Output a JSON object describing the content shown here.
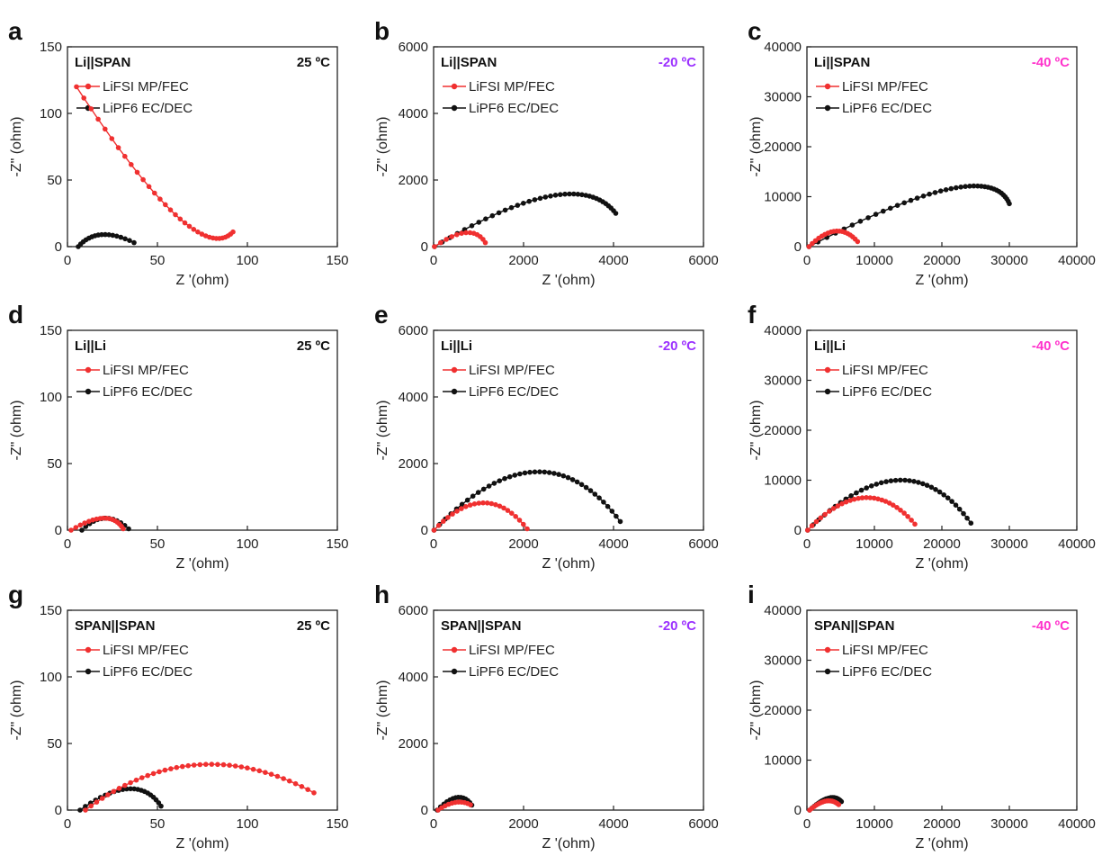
{
  "figure": {
    "legend_labels": [
      "LiFSI MP/FEC",
      "LiPF6 EC/DEC"
    ],
    "x_label": "Z '(ohm)",
    "y_label": "-Z\" (ohm)",
    "colors": {
      "series1": "#f03030",
      "series2": "#111111",
      "temp_20": "#9b30ff",
      "temp_40": "#ff33cc"
    }
  },
  "chart_data": [
    {
      "type": "scatter",
      "panel_letter": "a",
      "cell": "Li||SPAN",
      "temperature": "25 ºC",
      "temp_color": "#111111",
      "xlim": [
        0,
        150
      ],
      "ylim": [
        0,
        150
      ],
      "x_ticks": [
        "0",
        "50",
        "100",
        "150"
      ],
      "y_ticks": [
        "0",
        "50",
        "100",
        "150"
      ],
      "series": [
        {
          "name": "LiFSI MP/FEC",
          "color": "#f03030",
          "arc": [
            5,
            120,
            60,
            24,
            92,
            11,
            33
          ]
        },
        {
          "name": "LiPF6 EC/DEC",
          "color": "#111111",
          "arc": [
            6,
            0,
            19,
            9,
            37,
            3,
            17
          ]
        }
      ]
    },
    {
      "type": "scatter",
      "panel_letter": "b",
      "cell": "Li||SPAN",
      "temperature": "-20 ºC",
      "temp_color": "#9b30ff",
      "xlim": [
        0,
        6000
      ],
      "ylim": [
        0,
        6000
      ],
      "x_ticks": [
        "0",
        "2000",
        "4000",
        "6000"
      ],
      "y_ticks": [
        "0",
        "2000",
        "4000",
        "6000"
      ],
      "series": [
        {
          "name": "LiFSI MP/FEC",
          "color": "#f03030",
          "arc": [
            20,
            0,
            720,
            420,
            1150,
            120,
            13
          ]
        },
        {
          "name": "LiPF6 EC/DEC",
          "color": "#111111",
          "arc": [
            20,
            0,
            2600,
            1520,
            4050,
            1000,
            37
          ]
        }
      ]
    },
    {
      "type": "scatter",
      "panel_letter": "c",
      "cell": "Li||SPAN",
      "temperature": "-40 ºC",
      "temp_color": "#ff33cc",
      "xlim": [
        0,
        40000
      ],
      "ylim": [
        0,
        40000
      ],
      "x_ticks": [
        "0",
        "10000",
        "20000",
        "30000",
        "40000"
      ],
      "y_ticks": [
        "0",
        "10000",
        "20000",
        "30000",
        "40000"
      ],
      "series": [
        {
          "name": "LiFSI MP/FEC",
          "color": "#f03030",
          "arc": [
            300,
            0,
            4200,
            3100,
            7500,
            1000,
            18
          ]
        },
        {
          "name": "LiPF6 EC/DEC",
          "color": "#111111",
          "arc": [
            300,
            0,
            21000,
            11500,
            30000,
            8600,
            40
          ]
        }
      ]
    },
    {
      "type": "scatter",
      "panel_letter": "d",
      "cell": "Li||Li",
      "temperature": "25 ºC",
      "temp_color": "#111111",
      "xlim": [
        0,
        150
      ],
      "ylim": [
        0,
        150
      ],
      "x_ticks": [
        "0",
        "50",
        "100",
        "150"
      ],
      "y_ticks": [
        "0",
        "50",
        "100",
        "150"
      ],
      "series": [
        {
          "name": "LiFSI MP/FEC",
          "color": "#f03030",
          "arc": [
            2,
            0,
            20,
            9,
            31,
            1,
            17
          ]
        },
        {
          "name": "LiPF6 EC/DEC",
          "color": "#111111",
          "arc": [
            8,
            0,
            21,
            9,
            34,
            1,
            13
          ]
        }
      ]
    },
    {
      "type": "scatter",
      "panel_letter": "e",
      "cell": "Li||Li",
      "temperature": "-20 ºC",
      "temp_color": "#9b30ff",
      "xlim": [
        0,
        6000
      ],
      "ylim": [
        0,
        6000
      ],
      "x_ticks": [
        "0",
        "2000",
        "4000",
        "6000"
      ],
      "y_ticks": [
        "0",
        "2000",
        "4000",
        "6000"
      ],
      "series": [
        {
          "name": "LiFSI MP/FEC",
          "color": "#f03030",
          "arc": [
            10,
            0,
            1100,
            820,
            2080,
            40,
            23
          ]
        },
        {
          "name": "LiPF6 EC/DEC",
          "color": "#111111",
          "arc": [
            10,
            0,
            2250,
            1750,
            4150,
            260,
            39
          ]
        }
      ]
    },
    {
      "type": "scatter",
      "panel_letter": "f",
      "cell": "Li||Li",
      "temperature": "-40 ºC",
      "temp_color": "#ff33cc",
      "xlim": [
        0,
        40000
      ],
      "ylim": [
        0,
        40000
      ],
      "x_ticks": [
        "0",
        "10000",
        "20000",
        "30000",
        "40000"
      ],
      "y_ticks": [
        "0",
        "10000",
        "20000",
        "30000",
        "40000"
      ],
      "series": [
        {
          "name": "LiFSI MP/FEC",
          "color": "#f03030",
          "arc": [
            100,
            0,
            8500,
            6500,
            16000,
            1200,
            28
          ]
        },
        {
          "name": "LiPF6 EC/DEC",
          "color": "#111111",
          "arc": [
            100,
            0,
            13500,
            10000,
            24300,
            1400,
            36
          ]
        }
      ]
    },
    {
      "type": "scatter",
      "panel_letter": "g",
      "cell": "SPAN||SPAN",
      "temperature": "25 ºC",
      "temp_color": "#111111",
      "xlim": [
        0,
        150
      ],
      "ylim": [
        0,
        150
      ],
      "x_ticks": [
        "0",
        "50",
        "100",
        "150"
      ],
      "y_ticks": [
        "0",
        "50",
        "100",
        "150"
      ],
      "series": [
        {
          "name": "LiFSI MP/FEC",
          "color": "#f03030",
          "arc": [
            10,
            0,
            72,
            34,
            137,
            13,
            40
          ]
        },
        {
          "name": "LiPF6 EC/DEC",
          "color": "#111111",
          "arc": [
            7,
            0,
            34,
            16,
            52,
            3,
            22
          ]
        }
      ]
    },
    {
      "type": "scatter",
      "panel_letter": "h",
      "cell": "SPAN||SPAN",
      "temperature": "-20 ºC",
      "temp_color": "#9b30ff",
      "xlim": [
        0,
        6000
      ],
      "ylim": [
        0,
        6000
      ],
      "x_ticks": [
        "0",
        "2000",
        "4000",
        "6000"
      ],
      "y_ticks": [
        "0",
        "2000",
        "4000",
        "6000"
      ],
      "series": [
        {
          "name": "LiFSI MP/FEC",
          "color": "#f03030",
          "arc": [
            100,
            0,
            480,
            230,
            820,
            160,
            11
          ]
        },
        {
          "name": "LiPF6 EC/DEC",
          "color": "#111111",
          "arc": [
            80,
            0,
            520,
            380,
            850,
            150,
            14
          ]
        }
      ]
    },
    {
      "type": "scatter",
      "panel_letter": "i",
      "cell": "SPAN||SPAN",
      "temperature": "-40 ºC",
      "temp_color": "#ff33cc",
      "xlim": [
        0,
        40000
      ],
      "ylim": [
        0,
        40000
      ],
      "x_ticks": [
        "0",
        "10000",
        "20000",
        "30000",
        "40000"
      ],
      "y_ticks": [
        "0",
        "10000",
        "20000",
        "30000",
        "40000"
      ],
      "series": [
        {
          "name": "LiFSI MP/FEC",
          "color": "#f03030",
          "arc": [
            400,
            0,
            2800,
            1800,
            4700,
            1100,
            16
          ]
        },
        {
          "name": "LiPF6 EC/DEC",
          "color": "#111111",
          "arc": [
            400,
            0,
            3200,
            2400,
            5100,
            1700,
            20
          ]
        }
      ]
    }
  ]
}
